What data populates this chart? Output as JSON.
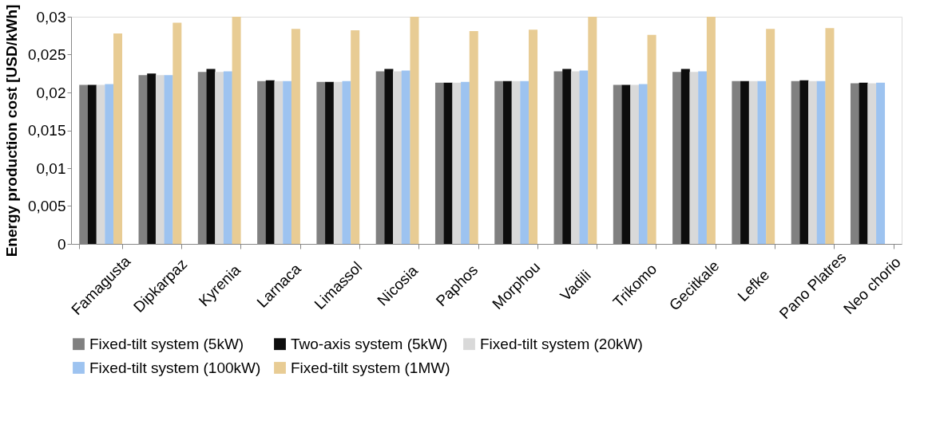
{
  "chart_data": {
    "type": "bar",
    "ylabel": "Energy production cost [USD/kWh]",
    "categories": [
      "Famagusta",
      "Dipkarpaz",
      "Kyrenia",
      "Larnaca",
      "Limassol",
      "Nicosia",
      "Paphos",
      "Morphou",
      "Vadili",
      "Trikomo",
      "Gecitkale",
      "Lefke",
      "Pano Platres",
      "Neo chorio"
    ],
    "series": [
      {
        "name": "Fixed-tilt system (5kW)",
        "color": "#808080",
        "values": [
          0.021,
          0.0223,
          0.0227,
          0.0215,
          0.0214,
          0.0228,
          0.0213,
          0.0215,
          0.0228,
          0.021,
          0.0227,
          0.0215,
          0.0215,
          0.0212
        ]
      },
      {
        "name": "Two-axis system (5kW)",
        "color": "#0d0d0d",
        "values": [
          0.021,
          0.0225,
          0.0231,
          0.0216,
          0.0214,
          0.0231,
          0.0213,
          0.0215,
          0.0231,
          0.021,
          0.0231,
          0.0215,
          0.0216,
          0.0213
        ]
      },
      {
        "name": "Fixed-tilt system (20kW)",
        "color": "#d9d9d9",
        "values": [
          0.021,
          0.0223,
          0.0227,
          0.0215,
          0.0214,
          0.0228,
          0.0213,
          0.0215,
          0.0228,
          0.021,
          0.0227,
          0.0215,
          0.0215,
          0.0212
        ]
      },
      {
        "name": "Fixed-tilt system (100kW)",
        "color": "#9dc3f0",
        "values": [
          0.0211,
          0.0223,
          0.0228,
          0.0215,
          0.0215,
          0.0229,
          0.0214,
          0.0215,
          0.0229,
          0.0211,
          0.0228,
          0.0215,
          0.0215,
          0.0213
        ]
      },
      {
        "name": "Fixed-tilt system (1MW)",
        "color": "#e8cc94",
        "values": [
          0.0278,
          0.0292,
          0.03,
          0.0284,
          0.0282,
          0.03,
          0.0281,
          0.0283,
          0.03,
          0.0276,
          0.03,
          0.0284,
          0.0285,
          null
        ]
      }
    ],
    "ylim": [
      0,
      0.03
    ],
    "yticks": [
      0,
      {
        "value": 0.005,
        "label": "0,005"
      },
      {
        "value": 0.01,
        "label": "0,01"
      },
      {
        "value": 0.015,
        "label": "0,015"
      },
      {
        "value": 0.02,
        "label": "0,02"
      },
      {
        "value": 0.025,
        "label": "0,025"
      },
      {
        "value": 0.03,
        "label": "0,03"
      }
    ],
    "grid": false,
    "legend": "bottom"
  }
}
